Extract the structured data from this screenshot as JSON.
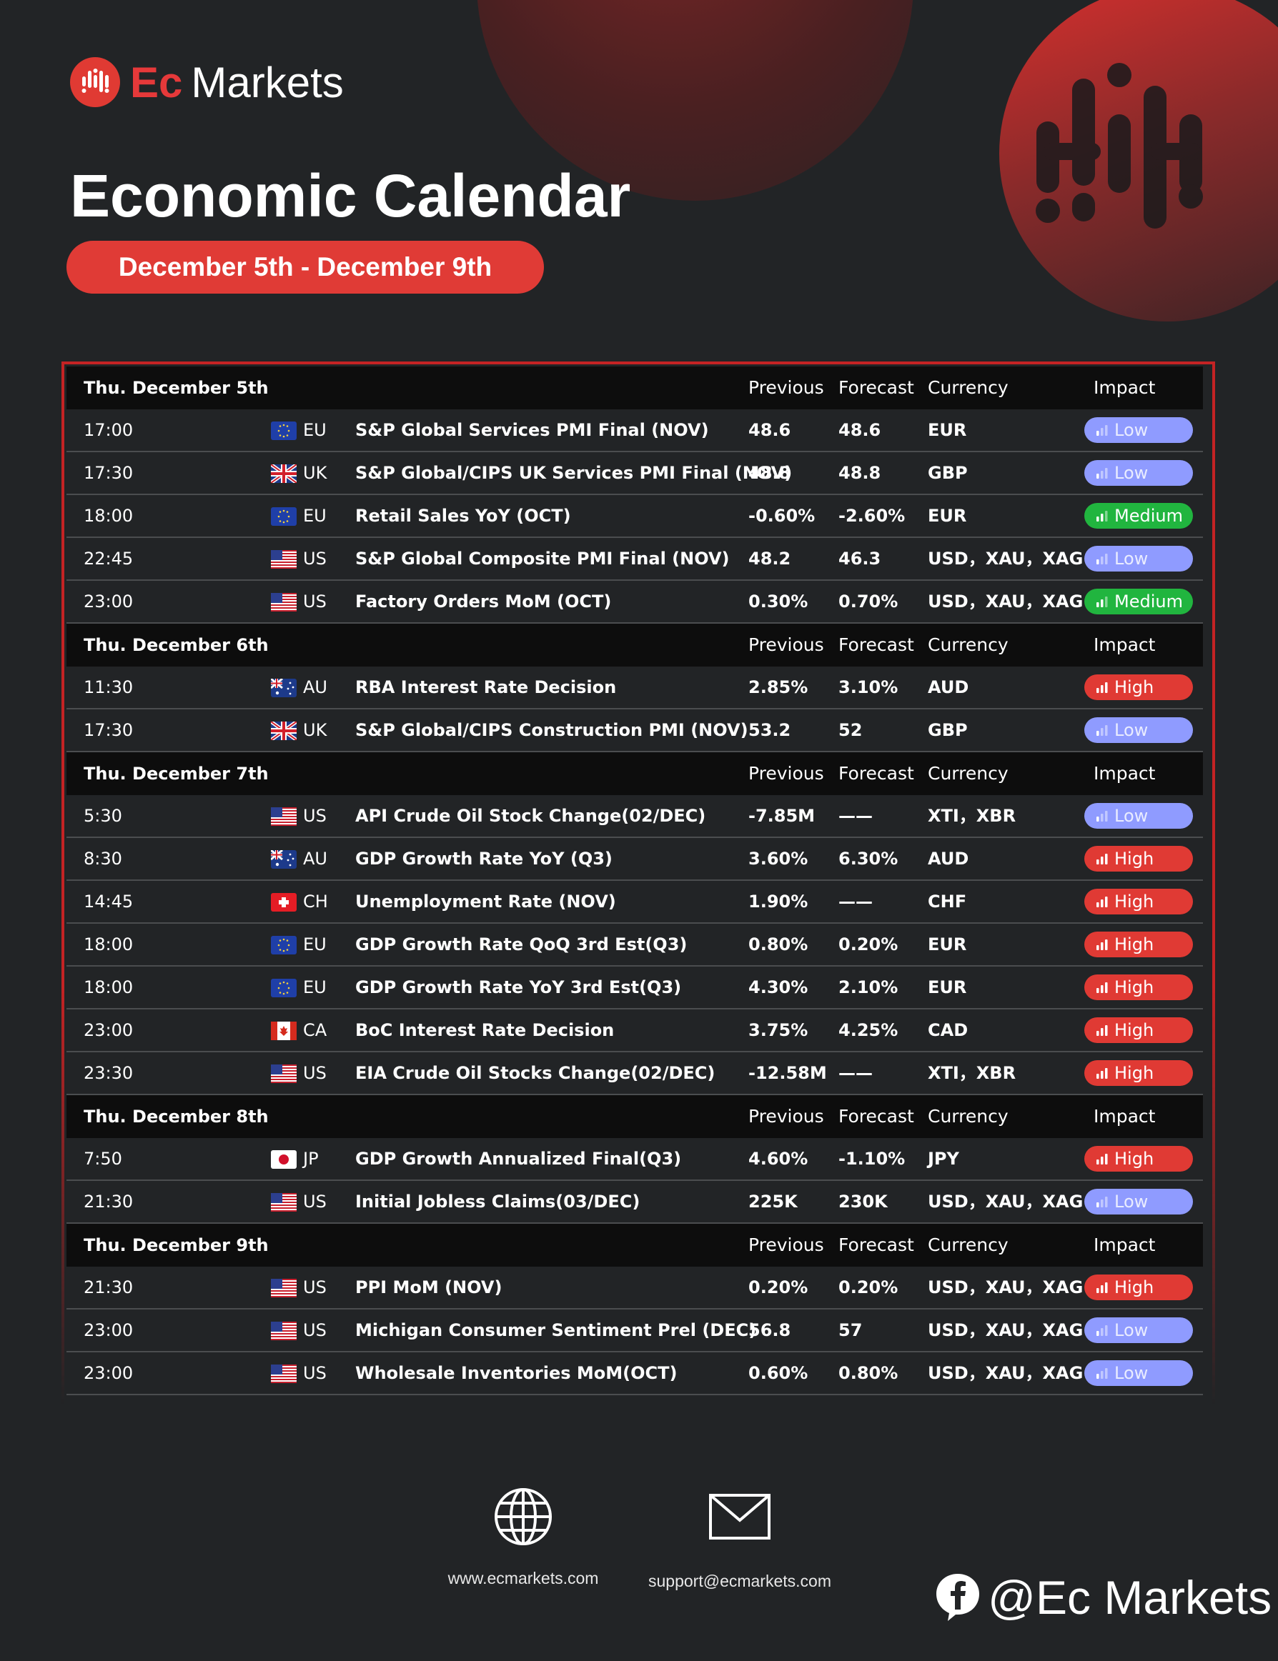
{
  "brand": {
    "ec": "Ec",
    "markets": "Markets",
    "accent": "#e03a33"
  },
  "title": "Economic Calendar",
  "date_range": "December 5th - December 9th",
  "columns": {
    "previous": "Previous",
    "forecast": "Forecast",
    "currency": "Currency",
    "impact": "Impact"
  },
  "impact_colors": {
    "Low": "#8f9bff",
    "Medium": "#21b53f",
    "High": "#e03a34"
  },
  "days": [
    {
      "date": "Thu. December 5th",
      "events": [
        {
          "time": "17:00",
          "flag": "eu-flag-icon",
          "region": "EU",
          "event": "S&P Global Services PMI Final (NOV)",
          "previous": "48.6",
          "forecast": "48.6",
          "currency": "EUR",
          "impact": "Low"
        },
        {
          "time": "17:30",
          "flag": "uk-flag-icon",
          "region": "UK",
          "event": "S&P Global/CIPS UK Services PMI Final (NOV)",
          "previous": "48.8",
          "forecast": "48.8",
          "currency": "GBP",
          "impact": "Low"
        },
        {
          "time": "18:00",
          "flag": "eu-flag-icon",
          "region": "EU",
          "event": "Retail Sales YoY (OCT)",
          "previous": "-0.60%",
          "forecast": "-2.60%",
          "currency": "EUR",
          "impact": "Medium"
        },
        {
          "time": "22:45",
          "flag": "us-flag-icon",
          "region": "US",
          "event": "S&P Global Composite PMI Final (NOV)",
          "previous": "48.2",
          "forecast": "46.3",
          "currency": "USD，XAU，XAG",
          "impact": "Low"
        },
        {
          "time": "23:00",
          "flag": "us-flag-icon",
          "region": "US",
          "event": "Factory Orders MoM (OCT)",
          "previous": "0.30%",
          "forecast": "0.70%",
          "currency": "USD，XAU，XAG",
          "impact": "Medium"
        }
      ]
    },
    {
      "date": "Thu. December 6th",
      "events": [
        {
          "time": "11:30",
          "flag": "au-flag-icon",
          "region": "AU",
          "event": "RBA Interest Rate Decision",
          "previous": "2.85%",
          "forecast": "3.10%",
          "currency": "AUD",
          "impact": "High"
        },
        {
          "time": "17:30",
          "flag": "uk-flag-icon",
          "region": "UK",
          "event": "S&P Global/CIPS Construction PMI (NOV)",
          "previous": "53.2",
          "forecast": "52",
          "currency": "GBP",
          "impact": "Low"
        }
      ]
    },
    {
      "date": "Thu. December 7th",
      "events": [
        {
          "time": "5:30",
          "flag": "us-flag-icon",
          "region": "US",
          "event": "API Crude Oil Stock Change(02/DEC)",
          "previous": "-7.85M",
          "forecast": "——",
          "currency": "XTI，XBR",
          "impact": "Low"
        },
        {
          "time": "8:30",
          "flag": "au-flag-icon",
          "region": "AU",
          "event": "GDP Growth Rate YoY (Q3)",
          "previous": "3.60%",
          "forecast": "6.30%",
          "currency": "AUD",
          "impact": "High"
        },
        {
          "time": "14:45",
          "flag": "ch-flag-icon",
          "region": "CH",
          "event": "Unemployment Rate (NOV)",
          "previous": "1.90%",
          "forecast": "——",
          "currency": "CHF",
          "impact": "High"
        },
        {
          "time": "18:00",
          "flag": "eu-flag-icon",
          "region": "EU",
          "event": "GDP Growth Rate QoQ 3rd Est(Q3)",
          "previous": "0.80%",
          "forecast": "0.20%",
          "currency": "EUR",
          "impact": "High"
        },
        {
          "time": "18:00",
          "flag": "eu-flag-icon",
          "region": "EU",
          "event": "GDP Growth Rate YoY 3rd Est(Q3)",
          "previous": "4.30%",
          "forecast": "2.10%",
          "currency": "EUR",
          "impact": "High"
        },
        {
          "time": "23:00",
          "flag": "ca-flag-icon",
          "region": "CA",
          "event": "BoC Interest Rate Decision",
          "previous": "3.75%",
          "forecast": "4.25%",
          "currency": "CAD",
          "impact": "High"
        },
        {
          "time": "23:30",
          "flag": "us-flag-icon",
          "region": "US",
          "event": "EIA Crude Oil Stocks Change(02/DEC)",
          "previous": "-12.58M",
          "forecast": "——",
          "currency": "XTI，XBR",
          "impact": "High"
        }
      ]
    },
    {
      "date": "Thu. December 8th",
      "events": [
        {
          "time": "7:50",
          "flag": "jp-flag-icon",
          "region": "JP",
          "event": "GDP Growth Annualized Final(Q3)",
          "previous": "4.60%",
          "forecast": "-1.10%",
          "currency": "JPY",
          "impact": "High"
        },
        {
          "time": "21:30",
          "flag": "us-flag-icon",
          "region": "US",
          "event": "Initial Jobless Claims(03/DEC)",
          "previous": "225K",
          "forecast": "230K",
          "currency": "USD，XAU，XAG",
          "impact": "Low"
        }
      ]
    },
    {
      "date": "Thu. December 9th",
      "events": [
        {
          "time": "21:30",
          "flag": "us-flag-icon",
          "region": "US",
          "event": "PPI MoM (NOV)",
          "previous": "0.20%",
          "forecast": "0.20%",
          "currency": "USD，XAU，XAG",
          "impact": "High"
        },
        {
          "time": "23:00",
          "flag": "us-flag-icon",
          "region": "US",
          "event": "Michigan Consumer Sentiment Prel (DEC)",
          "previous": "56.8",
          "forecast": "57",
          "currency": "USD，XAU，XAG",
          "impact": "Low"
        },
        {
          "time": "23:00",
          "flag": "us-flag-icon",
          "region": "US",
          "event": "Wholesale Inventories MoM(OCT)",
          "previous": "0.60%",
          "forecast": "0.80%",
          "currency": "USD，XAU，XAG",
          "impact": "Low"
        }
      ]
    }
  ],
  "footer": {
    "website": "www.ecmarkets.com",
    "email": "support@ecmarkets.com",
    "social_handle": "@Ec Markets",
    "website_icon": "globe-icon",
    "email_icon": "mail-icon",
    "social_icon": "facebook-icon"
  }
}
